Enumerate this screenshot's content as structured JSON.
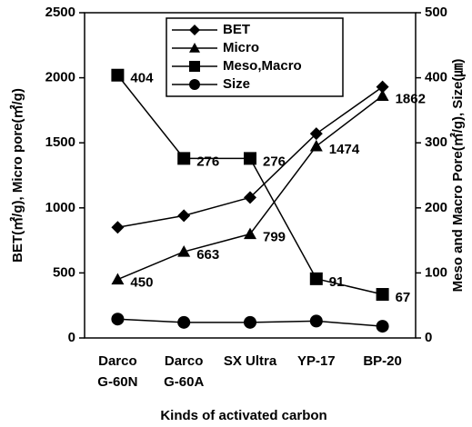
{
  "chart_data": {
    "type": "line",
    "ylabel": "BET(㎡/g), Micro pore(㎡/g)",
    "y2label": "Meso and Macro Pore(㎡/g), Size(㎛)",
    "xlabel": "Kinds of activated carbon",
    "categories": [
      [
        "Darco",
        "G-60N"
      ],
      [
        "Darco",
        "G-60A"
      ],
      [
        "SX Ultra"
      ],
      [
        "YP-17"
      ],
      [
        "BP-20"
      ]
    ],
    "ylim": [
      0,
      2500
    ],
    "yticks": [
      0,
      500,
      1000,
      1500,
      2000,
      2500
    ],
    "y2lim": [
      0,
      500
    ],
    "y2ticks": [
      0,
      100,
      200,
      300,
      400,
      500
    ],
    "legend": "top-center",
    "series": [
      {
        "name": "BET",
        "color": "#000000",
        "marker": "diamond",
        "values": [
          850,
          940,
          1080,
          1570,
          1930
        ]
      },
      {
        "name": "Micro",
        "color": "#000000",
        "marker": "triangle",
        "values": [
          450,
          663,
          799,
          1474,
          1862
        ],
        "data_labels": true
      },
      {
        "name": "Meso,Macro",
        "color": "#000000",
        "marker": "square",
        "axis": "y2",
        "values": [
          404,
          276,
          276,
          91,
          67
        ],
        "data_labels": true
      },
      {
        "name": "Size",
        "color": "#000000",
        "marker": "circle",
        "axis": "y2",
        "values": [
          29,
          24,
          24,
          26,
          18
        ]
      }
    ]
  }
}
